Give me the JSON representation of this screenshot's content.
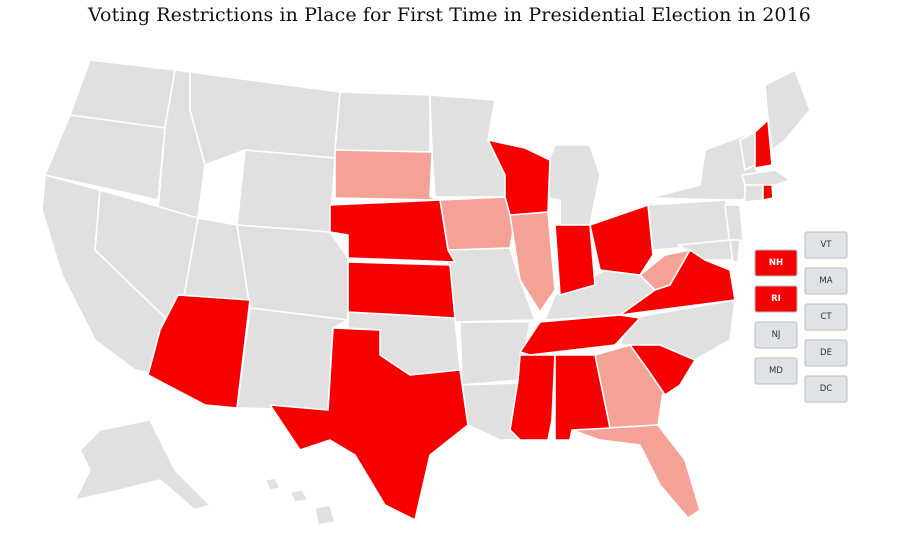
{
  "title": "Voting Restrictions in Place for First Time in Presidential Election in 2016",
  "colors": {
    "new_restriction": "#f80000",
    "partial_restriction": "#f4a196",
    "none": "#e0e0e0",
    "border": "#ffffff",
    "box_none": "#dfe2e6",
    "box_text_none": "#333333",
    "box_text_highlight": "#ffffff"
  },
  "legend_boxes": [
    {
      "label": "VT",
      "category": "none"
    },
    {
      "label": "NH",
      "category": "new_restriction"
    },
    {
      "label": "MA",
      "category": "none"
    },
    {
      "label": "RI",
      "category": "new_restriction"
    },
    {
      "label": "CT",
      "category": "none"
    },
    {
      "label": "NJ",
      "category": "none"
    },
    {
      "label": "DE",
      "category": "none"
    },
    {
      "label": "MD",
      "category": "none"
    },
    {
      "label": "DC",
      "category": "none"
    }
  ],
  "states": {
    "new_restriction": [
      "Arizona",
      "Texas",
      "Nebraska",
      "Kansas",
      "Wisconsin",
      "Indiana",
      "Ohio",
      "Virginia",
      "Tennessee",
      "Mississippi",
      "Alabama",
      "South Carolina",
      "New Hampshire",
      "Rhode Island"
    ],
    "partial_restriction": [
      "South Dakota",
      "Iowa",
      "Illinois",
      "West Virginia",
      "Georgia",
      "Florida"
    ]
  }
}
